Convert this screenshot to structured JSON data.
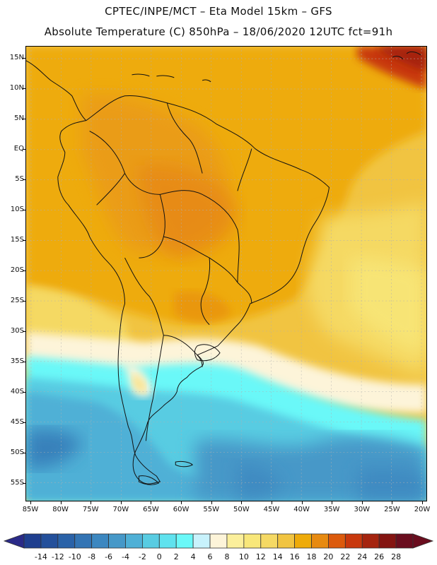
{
  "header": {
    "line1": "CPTEC/INPE/MCT –  Eta Model 15km – GFS",
    "line2": "Absolute Temperature (C) 850hPa – 18/06/2020 12UTC fct=91h"
  },
  "map": {
    "lat_labels": [
      "15N",
      "10N",
      "5N",
      "EQ",
      "5S",
      "10S",
      "15S",
      "20S",
      "25S",
      "30S",
      "35S",
      "40S",
      "45S",
      "50S",
      "55S"
    ],
    "lon_labels": [
      "85W",
      "80W",
      "75W",
      "70W",
      "65W",
      "60W",
      "55W",
      "50W",
      "45W",
      "40W",
      "35W",
      "30W",
      "25W",
      "20W"
    ],
    "lat_range": [
      15,
      -55
    ],
    "lon_range": [
      -85,
      -20
    ]
  },
  "colorbar": {
    "labels": [
      "-14",
      "-12",
      "-10",
      "-8",
      "-6",
      "-4",
      "-2",
      "0",
      "2",
      "4",
      "6",
      "8",
      "10",
      "12",
      "14",
      "16",
      "18",
      "20",
      "22",
      "24",
      "26",
      "28"
    ],
    "low_arrow_color": "#2a2a88",
    "high_arrow_color": "#6a0d1e",
    "colors": [
      "#1f3f8f",
      "#24509b",
      "#2a62a8",
      "#3374b4",
      "#3c87c0",
      "#4698c8",
      "#4fb0d6",
      "#58cce2",
      "#5fe2ee",
      "#6af8f8",
      "#c8f2fc",
      "#fdf4d9",
      "#fbef9b",
      "#f8e77a",
      "#f5d964",
      "#f1c441",
      "#eeab0a",
      "#e78a10",
      "#dc5a0c",
      "#c8380d",
      "#a5240f",
      "#841411",
      "#6a0d1e"
    ]
  }
}
